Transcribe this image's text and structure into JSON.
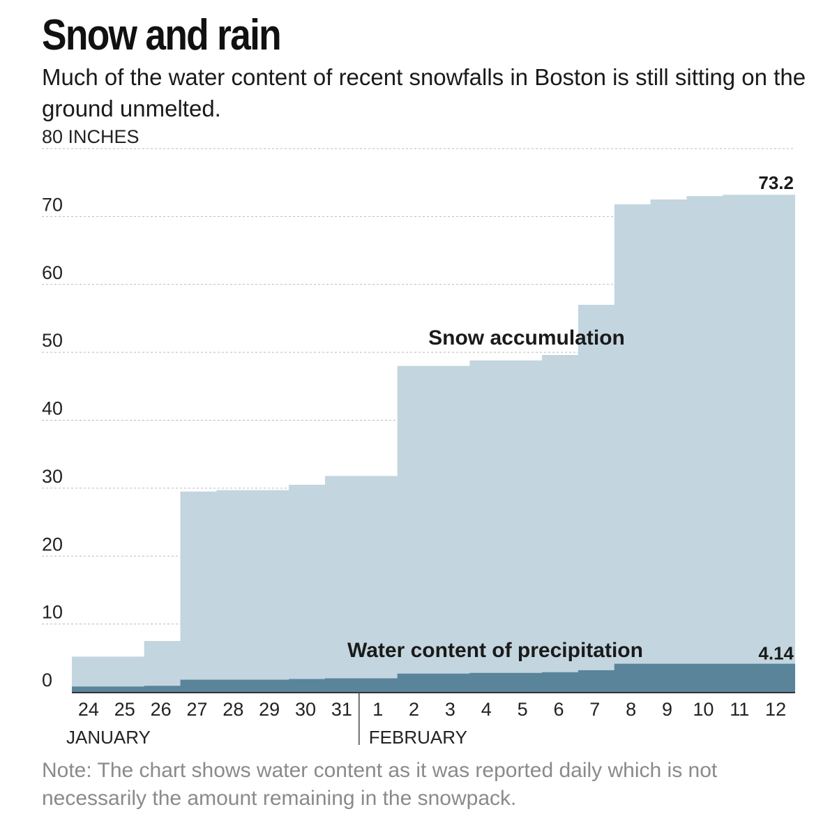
{
  "header": {
    "title": "Snow and rain",
    "subtitle": "Much of the water content of recent snowfalls in Boston is still sitting on the ground unmelted."
  },
  "note": "Note: The chart shows water content as it was reported daily which is not necessarily the amount remaining in the snowpack.",
  "colors": {
    "snow": "#c3d5df",
    "water": "#5a8499",
    "grid": "#bbbbbb",
    "axis": "#333333"
  },
  "chart_data": {
    "type": "area",
    "step": true,
    "ylim": [
      0,
      80
    ],
    "yticks": [
      0,
      10,
      20,
      30,
      40,
      50,
      60,
      70,
      80
    ],
    "ytick_labels": [
      "0",
      "10",
      "20",
      "30",
      "40",
      "50",
      "60",
      "70",
      "80 INCHES"
    ],
    "grid": true,
    "categories": [
      "24",
      "25",
      "26",
      "27",
      "28",
      "29",
      "30",
      "31",
      "1",
      "2",
      "3",
      "4",
      "5",
      "6",
      "7",
      "8",
      "9",
      "10",
      "11",
      "12"
    ],
    "month_labels": [
      {
        "label": "JANUARY",
        "start_index": 0
      },
      {
        "label": "FEBRUARY",
        "start_index": 8
      }
    ],
    "series": [
      {
        "name": "Snow accumulation",
        "values": [
          5.2,
          5.2,
          7.5,
          29.5,
          29.7,
          29.7,
          30.5,
          31.8,
          31.8,
          48.0,
          48.0,
          48.8,
          48.8,
          49.6,
          57.0,
          71.8,
          72.5,
          73.0,
          73.2,
          73.2
        ],
        "end_label": "73.2"
      },
      {
        "name": "Water content of precipitation",
        "values": [
          0.8,
          0.8,
          0.9,
          1.8,
          1.8,
          1.8,
          1.9,
          2.0,
          2.0,
          2.7,
          2.7,
          2.8,
          2.8,
          2.9,
          3.2,
          4.14,
          4.14,
          4.14,
          4.14,
          4.14
        ],
        "end_label": "4.14"
      }
    ]
  }
}
